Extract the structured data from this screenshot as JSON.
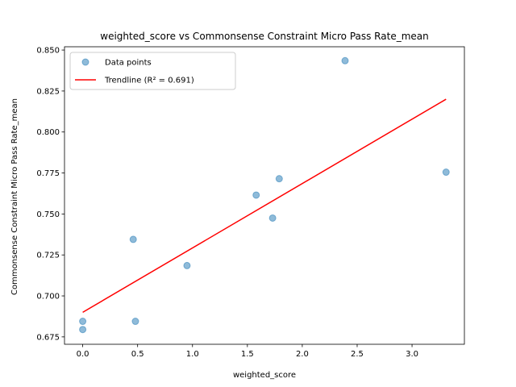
{
  "chart_data": {
    "type": "scatter",
    "title": "weighted_score vs Commonsense Constraint Micro Pass Rate_mean",
    "xlabel": "weighted_score",
    "ylabel": "Commonsense Constraint Micro Pass Rate_mean",
    "xlim": [
      -0.166,
      3.477
    ],
    "ylim": [
      0.6705,
      0.852
    ],
    "xticks": [
      0.0,
      0.5,
      1.0,
      1.5,
      2.0,
      2.5,
      3.0
    ],
    "xtick_labels": [
      "0.0",
      "0.5",
      "1.0",
      "1.5",
      "2.0",
      "2.5",
      "3.0"
    ],
    "yticks": [
      0.675,
      0.7,
      0.725,
      0.75,
      0.775,
      0.8,
      0.825,
      0.85
    ],
    "ytick_labels": [
      "0.675",
      "0.700",
      "0.725",
      "0.750",
      "0.775",
      "0.800",
      "0.825",
      "0.850"
    ],
    "grid": false,
    "legend_position": "top-left",
    "series": [
      {
        "name": "Data points",
        "type": "scatter",
        "color": "#1f77b4",
        "x": [
          0.0,
          0.0,
          0.46,
          0.48,
          0.95,
          1.58,
          1.73,
          1.79,
          2.39,
          3.31
        ],
        "y": [
          0.6795,
          0.6845,
          0.7345,
          0.6845,
          0.7185,
          0.7615,
          0.7475,
          0.7715,
          0.8435,
          0.7755
        ]
      },
      {
        "name": "Trendline (R² = 0.691)",
        "type": "line",
        "color": "#ff0000",
        "x": [
          0.0,
          3.31
        ],
        "y": [
          0.69,
          0.82
        ]
      }
    ]
  }
}
